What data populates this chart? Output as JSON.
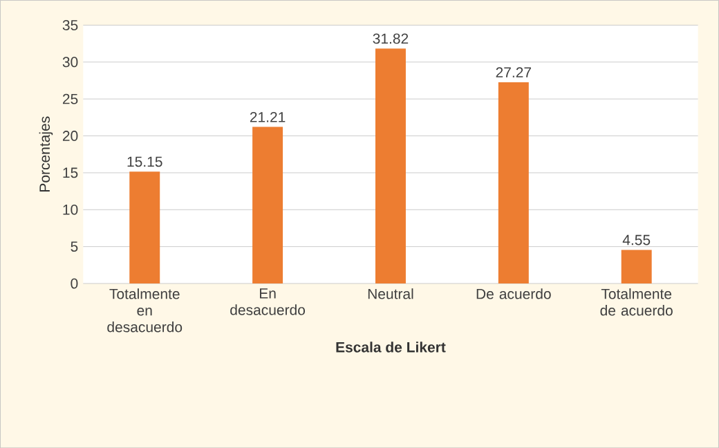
{
  "chart_data": {
    "type": "bar",
    "xlabel": "Escala de Likert",
    "ylabel": "Porcentajes",
    "categories": [
      "Totalmente en desacuerdo",
      "En desacuerdo",
      "Neutral",
      "De acuerdo",
      "Totalmente de acuerdo"
    ],
    "values": [
      15.15,
      21.21,
      31.82,
      27.27,
      4.55
    ],
    "color": "#ed7d31",
    "ylim": [
      0,
      35
    ],
    "yticks": [
      0,
      5,
      10,
      15,
      20,
      25,
      30,
      35
    ],
    "grid": "y",
    "data_labels": true
  }
}
